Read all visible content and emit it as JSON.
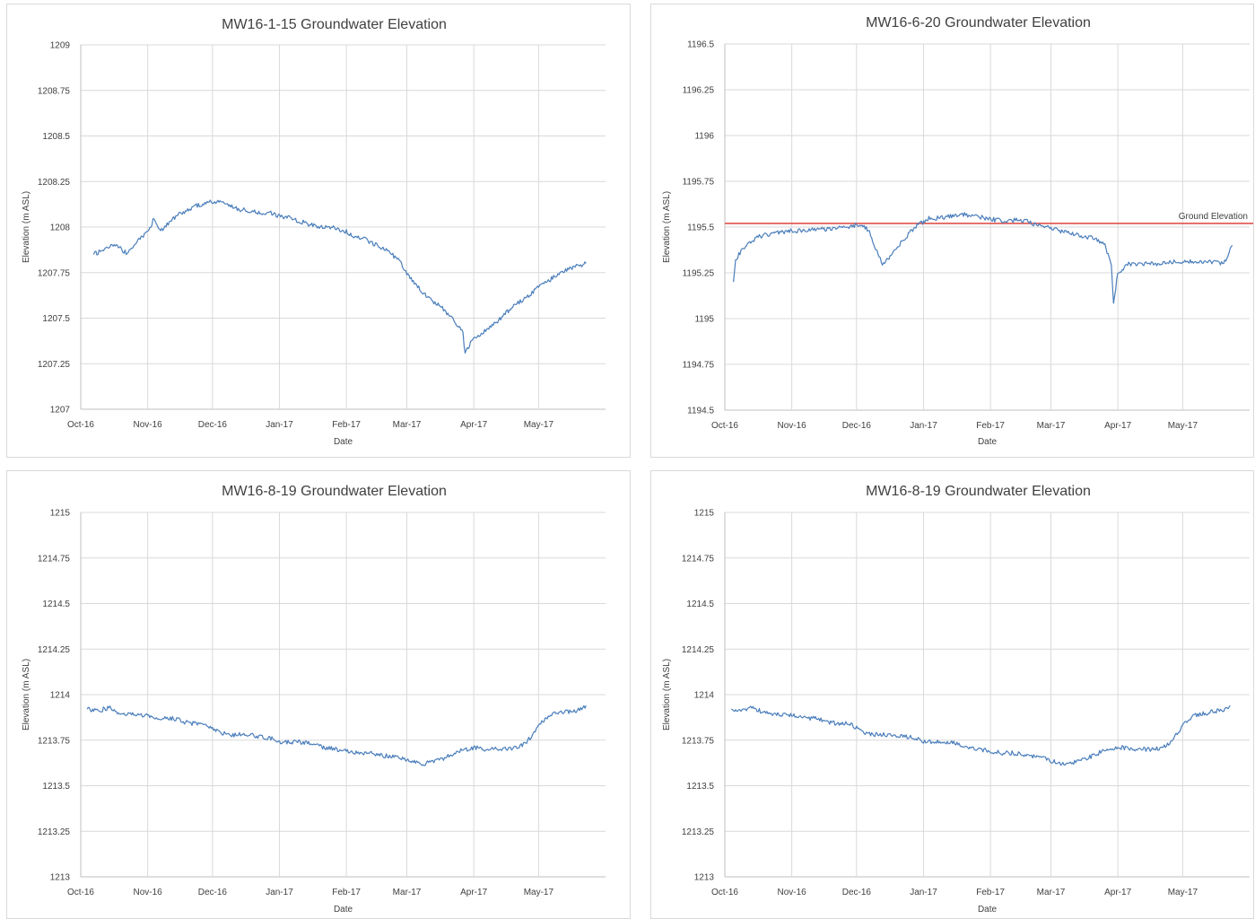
{
  "chart_data": [
    {
      "type": "line",
      "title": "MW16-1-15 Groundwater Elevation",
      "xlabel": "Date",
      "ylabel": "Elevation (m ASL)",
      "ylim": [
        1207,
        1209
      ],
      "yticks": [
        "1207",
        "1207.25",
        "1207.5",
        "1207.75",
        "1208",
        "1208.25",
        "1208.5",
        "1208.75",
        "1209"
      ],
      "xlim": [
        "2016-10-01",
        "2017-06-01"
      ],
      "xticks": [
        {
          "date": "2016-10-01",
          "label": "Oct-16"
        },
        {
          "date": "2016-11-01",
          "label": "Nov-16"
        },
        {
          "date": "2016-12-01",
          "label": "Dec-16"
        },
        {
          "date": "2017-01-01",
          "label": "Jan-17"
        },
        {
          "date": "2017-02-01",
          "label": "Feb-17"
        },
        {
          "date": "2017-03-01",
          "label": "Mar-17"
        },
        {
          "date": "2017-04-01",
          "label": "Apr-17"
        },
        {
          "date": "2017-05-01",
          "label": "May-17"
        }
      ],
      "grid": true,
      "series": [
        {
          "color": "#4a7ebb",
          "x": [
            "2016-10-07",
            "2016-10-12",
            "2016-10-17",
            "2016-10-22",
            "2016-10-27",
            "2016-11-01",
            "2016-11-04",
            "2016-11-07",
            "2016-11-12",
            "2016-11-17",
            "2016-11-22",
            "2016-11-27",
            "2016-12-02",
            "2016-12-07",
            "2016-12-12",
            "2016-12-17",
            "2016-12-22",
            "2016-12-27",
            "2017-01-01",
            "2017-01-06",
            "2017-01-11",
            "2017-01-16",
            "2017-01-21",
            "2017-01-26",
            "2017-01-31",
            "2017-02-05",
            "2017-02-10",
            "2017-02-15",
            "2017-02-20",
            "2017-02-25",
            "2017-03-02",
            "2017-03-07",
            "2017-03-12",
            "2017-03-17",
            "2017-03-22",
            "2017-03-27",
            "2017-03-28",
            "2017-03-31",
            "2017-04-05",
            "2017-04-10",
            "2017-04-15",
            "2017-04-20",
            "2017-04-25",
            "2017-04-30",
            "2017-05-05",
            "2017-05-10",
            "2017-05-15",
            "2017-05-20",
            "2017-05-23"
          ],
          "y": [
            1207.85,
            1207.88,
            1207.9,
            1207.86,
            1207.92,
            1207.97,
            1208.05,
            1207.98,
            1208.04,
            1208.08,
            1208.11,
            1208.13,
            1208.14,
            1208.13,
            1208.1,
            1208.09,
            1208.08,
            1208.08,
            1208.06,
            1208.05,
            1208.03,
            1208.01,
            1208.0,
            1208.0,
            1207.98,
            1207.95,
            1207.93,
            1207.9,
            1207.87,
            1207.82,
            1207.73,
            1207.66,
            1207.6,
            1207.56,
            1207.5,
            1207.42,
            1207.3,
            1207.38,
            1207.42,
            1207.46,
            1207.52,
            1207.57,
            1207.61,
            1207.66,
            1207.7,
            1207.74,
            1207.77,
            1207.79,
            1207.8
          ]
        }
      ]
    },
    {
      "type": "line",
      "title": "MW16-6-20 Groundwater Elevation",
      "xlabel": "Date",
      "ylabel": "Elevation (m ASL)",
      "ylim": [
        1194.5,
        1196.5
      ],
      "yticks": [
        "1194.5",
        "1194.75",
        "1195",
        "1195.25",
        "1195.5",
        "1195.75",
        "1196",
        "1196.25",
        "1196.5"
      ],
      "xlim": [
        "2016-10-01",
        "2017-06-01"
      ],
      "xticks": [
        {
          "date": "2016-10-01",
          "label": "Oct-16"
        },
        {
          "date": "2016-11-01",
          "label": "Nov-16"
        },
        {
          "date": "2016-12-01",
          "label": "Dec-16"
        },
        {
          "date": "2017-01-01",
          "label": "Jan-17"
        },
        {
          "date": "2017-02-01",
          "label": "Feb-17"
        },
        {
          "date": "2017-03-01",
          "label": "Mar-17"
        },
        {
          "date": "2017-04-01",
          "label": "Apr-17"
        },
        {
          "date": "2017-05-01",
          "label": "May-17"
        }
      ],
      "grid": true,
      "reference_line": {
        "y": 1195.52,
        "label": "Ground Elevation",
        "color": "#e0504a"
      },
      "series": [
        {
          "color": "#4a7ebb",
          "x": [
            "2016-10-05",
            "2016-10-06",
            "2016-10-08",
            "2016-10-11",
            "2016-10-14",
            "2016-10-17",
            "2016-10-22",
            "2016-10-27",
            "2016-11-01",
            "2016-11-06",
            "2016-11-11",
            "2016-11-16",
            "2016-11-21",
            "2016-11-26",
            "2016-12-01",
            "2016-12-04",
            "2016-12-07",
            "2016-12-10",
            "2016-12-13",
            "2016-12-16",
            "2016-12-19",
            "2016-12-22",
            "2016-12-25",
            "2016-12-28",
            "2017-01-01",
            "2017-01-04",
            "2017-01-09",
            "2017-01-14",
            "2017-01-19",
            "2017-01-24",
            "2017-01-29",
            "2017-02-03",
            "2017-02-08",
            "2017-02-13",
            "2017-02-18",
            "2017-02-23",
            "2017-02-28",
            "2017-03-05",
            "2017-03-10",
            "2017-03-15",
            "2017-03-20",
            "2017-03-23",
            "2017-03-26",
            "2017-03-29",
            "2017-03-30",
            "2017-04-01",
            "2017-04-06",
            "2017-04-11",
            "2017-04-16",
            "2017-04-21",
            "2017-04-26",
            "2017-05-01",
            "2017-05-06",
            "2017-05-11",
            "2017-05-16",
            "2017-05-20",
            "2017-05-22",
            "2017-05-24"
          ],
          "y": [
            1195.2,
            1195.32,
            1195.36,
            1195.4,
            1195.43,
            1195.45,
            1195.46,
            1195.47,
            1195.48,
            1195.48,
            1195.49,
            1195.49,
            1195.49,
            1195.5,
            1195.51,
            1195.51,
            1195.47,
            1195.38,
            1195.3,
            1195.33,
            1195.38,
            1195.42,
            1195.46,
            1195.5,
            1195.53,
            1195.55,
            1195.55,
            1195.56,
            1195.57,
            1195.56,
            1195.55,
            1195.54,
            1195.53,
            1195.54,
            1195.53,
            1195.51,
            1195.5,
            1195.48,
            1195.47,
            1195.45,
            1195.44,
            1195.43,
            1195.4,
            1195.3,
            1195.08,
            1195.25,
            1195.3,
            1195.3,
            1195.3,
            1195.3,
            1195.31,
            1195.31,
            1195.31,
            1195.31,
            1195.31,
            1195.3,
            1195.35,
            1195.4
          ]
        }
      ]
    },
    {
      "type": "line",
      "title": "MW16-8-19 Groundwater Elevation",
      "xlabel": "Date",
      "ylabel": "Elevation (m ASL)",
      "ylim": [
        1213,
        1215
      ],
      "yticks": [
        "1213",
        "1213.25",
        "1213.5",
        "1213.75",
        "1214",
        "1214.25",
        "1214.5",
        "1214.75",
        "1215"
      ],
      "xlim": [
        "2016-10-01",
        "2017-06-01"
      ],
      "xticks": [
        {
          "date": "2016-10-01",
          "label": "Oct-16"
        },
        {
          "date": "2016-11-01",
          "label": "Nov-16"
        },
        {
          "date": "2016-12-01",
          "label": "Dec-16"
        },
        {
          "date": "2017-01-01",
          "label": "Jan-17"
        },
        {
          "date": "2017-02-01",
          "label": "Feb-17"
        },
        {
          "date": "2017-03-01",
          "label": "Mar-17"
        },
        {
          "date": "2017-04-01",
          "label": "Apr-17"
        },
        {
          "date": "2017-05-01",
          "label": "May-17"
        }
      ],
      "grid": true,
      "series": [
        {
          "color": "#4a7ebb",
          "x": [
            "2016-10-04",
            "2016-10-09",
            "2016-10-14",
            "2016-10-19",
            "2016-10-24",
            "2016-10-29",
            "2016-11-03",
            "2016-11-08",
            "2016-11-13",
            "2016-11-18",
            "2016-11-23",
            "2016-11-28",
            "2016-12-03",
            "2016-12-08",
            "2016-12-13",
            "2016-12-18",
            "2016-12-23",
            "2016-12-28",
            "2017-01-02",
            "2017-01-07",
            "2017-01-12",
            "2017-01-17",
            "2017-01-22",
            "2017-01-27",
            "2017-02-01",
            "2017-02-06",
            "2017-02-11",
            "2017-02-16",
            "2017-02-21",
            "2017-02-26",
            "2017-03-03",
            "2017-03-08",
            "2017-03-13",
            "2017-03-18",
            "2017-03-23",
            "2017-03-28",
            "2017-04-02",
            "2017-04-07",
            "2017-04-12",
            "2017-04-17",
            "2017-04-22",
            "2017-04-27",
            "2017-05-02",
            "2017-05-07",
            "2017-05-12",
            "2017-05-17",
            "2017-05-21",
            "2017-05-23"
          ],
          "y": [
            1213.92,
            1213.91,
            1213.93,
            1213.9,
            1213.89,
            1213.89,
            1213.88,
            1213.87,
            1213.87,
            1213.85,
            1213.84,
            1213.84,
            1213.8,
            1213.78,
            1213.78,
            1213.78,
            1213.77,
            1213.76,
            1213.74,
            1213.74,
            1213.74,
            1213.73,
            1213.71,
            1213.7,
            1213.69,
            1213.68,
            1213.68,
            1213.67,
            1213.66,
            1213.65,
            1213.63,
            1213.62,
            1213.63,
            1213.65,
            1213.68,
            1213.7,
            1213.71,
            1213.7,
            1213.7,
            1213.7,
            1213.71,
            1213.76,
            1213.85,
            1213.89,
            1213.9,
            1213.91,
            1213.92,
            1213.94
          ]
        }
      ]
    },
    {
      "type": "line",
      "title": "MW16-8-19 Groundwater Elevation",
      "xlabel": "Date",
      "ylabel": "Elevation (m ASL)",
      "ylim": [
        1213,
        1215
      ],
      "yticks": [
        "1213",
        "1213.25",
        "1213.5",
        "1213.75",
        "1214",
        "1214.25",
        "1214.5",
        "1214.75",
        "1215"
      ],
      "xlim": [
        "2016-10-01",
        "2017-06-01"
      ],
      "xticks": [
        {
          "date": "2016-10-01",
          "label": "Oct-16"
        },
        {
          "date": "2016-11-01",
          "label": "Nov-16"
        },
        {
          "date": "2016-12-01",
          "label": "Dec-16"
        },
        {
          "date": "2017-01-01",
          "label": "Jan-17"
        },
        {
          "date": "2017-02-01",
          "label": "Feb-17"
        },
        {
          "date": "2017-03-01",
          "label": "Mar-17"
        },
        {
          "date": "2017-04-01",
          "label": "Apr-17"
        },
        {
          "date": "2017-05-01",
          "label": "May-17"
        }
      ],
      "grid": true,
      "series": [
        {
          "color": "#4a7ebb",
          "x": [
            "2016-10-04",
            "2016-10-09",
            "2016-10-14",
            "2016-10-19",
            "2016-10-24",
            "2016-10-29",
            "2016-11-03",
            "2016-11-08",
            "2016-11-13",
            "2016-11-18",
            "2016-11-23",
            "2016-11-28",
            "2016-12-03",
            "2016-12-08",
            "2016-12-13",
            "2016-12-18",
            "2016-12-23",
            "2016-12-28",
            "2017-01-02",
            "2017-01-07",
            "2017-01-12",
            "2017-01-17",
            "2017-01-22",
            "2017-01-27",
            "2017-02-01",
            "2017-02-06",
            "2017-02-11",
            "2017-02-16",
            "2017-02-21",
            "2017-02-26",
            "2017-03-03",
            "2017-03-08",
            "2017-03-13",
            "2017-03-18",
            "2017-03-23",
            "2017-03-28",
            "2017-04-02",
            "2017-04-07",
            "2017-04-12",
            "2017-04-17",
            "2017-04-22",
            "2017-04-27",
            "2017-05-02",
            "2017-05-07",
            "2017-05-12",
            "2017-05-17",
            "2017-05-21",
            "2017-05-23"
          ],
          "y": [
            1213.92,
            1213.91,
            1213.93,
            1213.9,
            1213.89,
            1213.89,
            1213.88,
            1213.87,
            1213.87,
            1213.85,
            1213.84,
            1213.84,
            1213.8,
            1213.78,
            1213.78,
            1213.78,
            1213.77,
            1213.76,
            1213.74,
            1213.74,
            1213.74,
            1213.73,
            1213.71,
            1213.7,
            1213.69,
            1213.68,
            1213.68,
            1213.67,
            1213.66,
            1213.65,
            1213.63,
            1213.62,
            1213.63,
            1213.65,
            1213.68,
            1213.7,
            1213.71,
            1213.7,
            1213.7,
            1213.7,
            1213.71,
            1213.76,
            1213.85,
            1213.89,
            1213.9,
            1213.91,
            1213.92,
            1213.94
          ]
        }
      ]
    }
  ]
}
